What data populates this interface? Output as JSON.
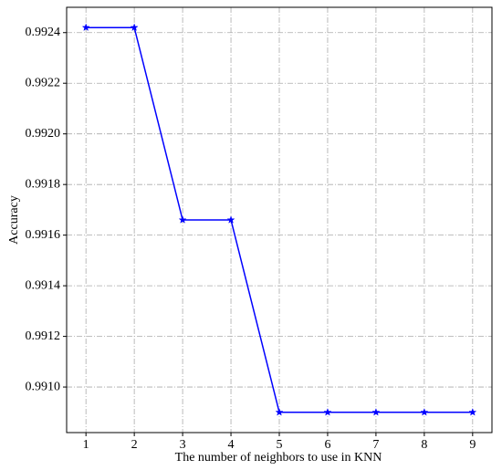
{
  "chart_data": {
    "type": "line",
    "x_label": "The number of neighbors to use in KNN",
    "y_label": "Accuracy",
    "x": [
      1,
      2,
      3,
      4,
      5,
      6,
      7,
      8,
      9
    ],
    "series": [
      {
        "color": "#0000ff",
        "marker": "star",
        "values": [
          0.99242,
          0.99242,
          0.99166,
          0.99166,
          0.9909,
          0.9909,
          0.9909,
          0.9909,
          0.9909
        ]
      }
    ],
    "xlim": [
      0.6,
      9.4
    ],
    "ylim": [
      0.99082,
      0.9925
    ],
    "xticks": [
      1,
      2,
      3,
      4,
      5,
      6,
      7,
      8,
      9
    ],
    "yticks": [
      {
        "value": 0.991,
        "label": "0.9910"
      },
      0.9912,
      0.9914,
      0.9916,
      0.9918,
      {
        "value": 0.992,
        "label": "0.9920"
      },
      0.9922,
      0.9924
    ],
    "grid": true
  }
}
